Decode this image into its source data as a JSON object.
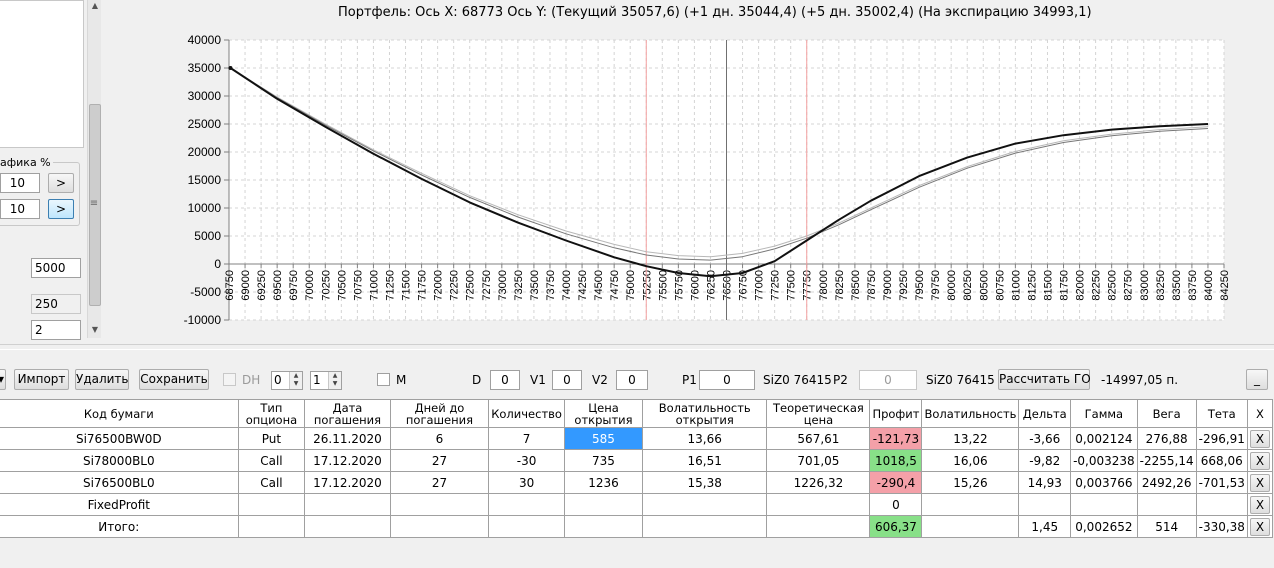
{
  "chart": {
    "title": "Портфель: Ось X: 68773 Ось Y:  (Текущий 35057,6)  (+1 дн. 35044,4)  (+5 дн. 35002,4)  (На экспирацию 34993,1)"
  },
  "chart_data": {
    "type": "line",
    "title": "Портфель: Ось X: 68773 Ось Y:  (Текущий 35057,6)  (+1 дн. 35044,4)  (+5 дн. 35002,4)  (На экспирацию 34993,1)",
    "xlim": [
      68750,
      84250
    ],
    "ylim": [
      -10000,
      40000
    ],
    "x_ticks": [
      "68750",
      "69000",
      "69250",
      "69500",
      "69750",
      "70000",
      "70250",
      "70500",
      "70750",
      "71000",
      "71250",
      "71500",
      "71750",
      "72000",
      "72250",
      "72500",
      "72750",
      "73000",
      "73250",
      "73500",
      "73750",
      "74000",
      "74250",
      "74500",
      "74750",
      "75000",
      "75250",
      "75500",
      "75750",
      "76000",
      "76250",
      "76500",
      "76750",
      "77000",
      "77250",
      "77500",
      "77750",
      "78000",
      "78250",
      "78500",
      "78750",
      "79000",
      "79250",
      "79500",
      "79750",
      "80000",
      "80250",
      "80500",
      "80750",
      "81000",
      "81250",
      "81500",
      "81750",
      "82000",
      "82250",
      "82500",
      "82750",
      "83000",
      "83250",
      "83500",
      "83750",
      "84000",
      "84250"
    ],
    "y_ticks": [
      "40000",
      "35000",
      "30000",
      "25000",
      "20000",
      "15000",
      "10000",
      "5000",
      "0",
      "-5000",
      "-10000"
    ],
    "grid": true,
    "vlines": [
      {
        "x": 75250,
        "color": "#f4a0a0"
      },
      {
        "x": 76500,
        "color": "#707070"
      },
      {
        "x": 77750,
        "color": "#f4a0a0"
      }
    ],
    "series": [
      {
        "color": "#111111",
        "width": 2,
        "x": [
          68773,
          69500,
          70250,
          71000,
          71750,
          72500,
          73250,
          74000,
          74750,
          75250,
          75750,
          76250,
          76750,
          77250,
          77750,
          78250,
          78750,
          79500,
          80250,
          81000,
          81750,
          82500,
          83250,
          84000
        ],
        "y": [
          35000,
          29500,
          24500,
          19700,
          15200,
          11000,
          7400,
          4200,
          1200,
          -400,
          -1600,
          -2200,
          -1600,
          500,
          4200,
          7900,
          11300,
          15700,
          19000,
          21500,
          23000,
          24000,
          24600,
          25000
        ]
      },
      {
        "color": "#777777",
        "width": 1,
        "x": [
          68773,
          69500,
          70250,
          71000,
          71750,
          72500,
          73250,
          74000,
          74750,
          75250,
          75750,
          76250,
          76750,
          77250,
          77750,
          78250,
          78750,
          79500,
          80250,
          81000,
          81750,
          82500,
          83250,
          84000
        ],
        "y": [
          35000,
          29700,
          24800,
          20200,
          15900,
          11900,
          8400,
          5400,
          2900,
          1600,
          900,
          700,
          1300,
          2700,
          4600,
          7000,
          9700,
          13700,
          17100,
          19800,
          21700,
          22900,
          23700,
          24200
        ]
      },
      {
        "color": "#b8b8b8",
        "width": 1,
        "x": [
          68773,
          69500,
          70250,
          71000,
          71750,
          72500,
          73250,
          74000,
          74750,
          75250,
          75750,
          76250,
          76750,
          77250,
          77750,
          78250,
          78750,
          79500,
          80250,
          81000,
          81750,
          82500,
          83250,
          84000
        ],
        "y": [
          35000,
          29800,
          25000,
          20400,
          16200,
          12200,
          8800,
          5900,
          3500,
          2200,
          1500,
          1300,
          1900,
          3200,
          5000,
          7300,
          10000,
          14000,
          17400,
          20100,
          22000,
          23200,
          24000,
          24500
        ]
      }
    ]
  },
  "left_panel": {
    "group_label": "афика %",
    "field1": "10",
    "field2": "10",
    "btn1": ">",
    "btn2": ">",
    "field3": "5000",
    "field4": "250",
    "field5": "2"
  },
  "toolbar": {
    "import": "Импорт",
    "delete": "Удалить",
    "save": "Сохранить",
    "dh_label": "DH",
    "spin1": "0",
    "spin2": "1",
    "m_label": "M",
    "d_label": "D",
    "d_value": "0",
    "v1_label": "V1",
    "v1_value": "0",
    "v2_label": "V2",
    "v2_value": "0",
    "p1_label": "P1",
    "p1_value": "0",
    "p1_ticker": "SiZ0 76415",
    "p2_label": "P2",
    "p2_value": "0",
    "p2_ticker": "SiZ0 76415",
    "calc_go": "Рассчитать ГО",
    "go_value": "-14997,05 п.",
    "minimize": "_"
  },
  "table": {
    "headers": [
      "Код бумаги",
      "Тип опциона",
      "Дата погашения",
      "Дней до погашения",
      "Количество",
      "Цена открытия",
      "Волатильность открытия",
      "Теоретическая цена",
      "Профит",
      "Волатильность",
      "Дельта",
      "Гамма",
      "Вега",
      "Тета",
      "X"
    ],
    "rows": [
      [
        "Si76500BW0D",
        "Put",
        "26.11.2020",
        "6",
        "7",
        "585",
        "13,66",
        "567,61",
        "-121,73",
        "13,22",
        "-3,66",
        "0,002124",
        "276,88",
        "-296,91",
        "X"
      ],
      [
        "Si78000BL0",
        "Call",
        "17.12.2020",
        "27",
        "-30",
        "735",
        "16,51",
        "701,05",
        "1018,5",
        "16,06",
        "-9,82",
        "-0,003238",
        "-2255,14",
        "668,06",
        "X"
      ],
      [
        "Si76500BL0",
        "Call",
        "17.12.2020",
        "27",
        "30",
        "1236",
        "15,38",
        "1226,32",
        "-290,4",
        "15,26",
        "14,93",
        "0,003766",
        "2492,26",
        "-701,53",
        "X"
      ],
      [
        "FixedProfit",
        "",
        "",
        "",
        "",
        "",
        "",
        "",
        "0",
        "",
        "",
        "",
        "",
        "",
        "X"
      ],
      [
        "Итого:",
        "",
        "",
        "",
        "",
        "",
        "",
        "",
        "606,37",
        "",
        "1,45",
        "0,002652",
        "514",
        "-330,38",
        "X"
      ]
    ],
    "colors": {
      "selected": "#3399ff",
      "profit_negative": "#f4a0a8",
      "profit_positive": "#88e088"
    }
  }
}
